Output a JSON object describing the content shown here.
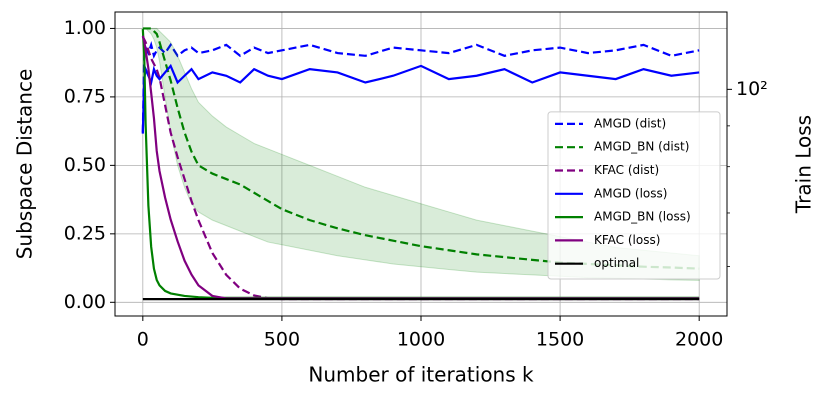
{
  "chart_data": {
    "type": "line",
    "xlabel": "Number of iterations k",
    "ylabel": "Subspace Distance",
    "y2label": "Train Loss",
    "x": [
      0,
      5,
      10,
      20,
      30,
      40,
      50,
      60,
      80,
      100,
      125,
      150,
      175,
      200,
      250,
      300,
      350,
      400,
      450,
      500,
      600,
      700,
      800,
      900,
      1000,
      1100,
      1200,
      1300,
      1400,
      1500,
      1600,
      1700,
      1800,
      1900,
      2000
    ],
    "xlim": [
      -100,
      2100
    ],
    "xticks": [
      0,
      500,
      1000,
      1500,
      2000
    ],
    "ylim": [
      -0.05,
      1.06
    ],
    "yticks": [
      {
        "value": 0,
        "label": "0.00"
      },
      {
        "value": 0.25,
        "label": "0.25"
      },
      {
        "value": 0.5,
        "label": "0.50"
      },
      {
        "value": 0.75,
        "label": "0.75"
      },
      {
        "value": 1,
        "label": "1.00"
      }
    ],
    "y2lim": [
      52,
      125
    ],
    "y2log": true,
    "y2ticks": [
      {
        "value": 100,
        "label": "10²"
      }
    ],
    "y2minor_ticks": [
      60,
      70,
      80,
      90
    ],
    "grid": true,
    "legend": "lower right",
    "series": [
      {
        "name": "AMGD (dist)",
        "color": "#0000ff",
        "linestyle": "dashed",
        "values": [
          0.62,
          0.9,
          0.93,
          0.91,
          0.94,
          0.9,
          0.92,
          0.93,
          0.91,
          0.94,
          0.9,
          0.92,
          0.93,
          0.91,
          0.92,
          0.94,
          0.9,
          0.93,
          0.91,
          0.92,
          0.94,
          0.91,
          0.9,
          0.93,
          0.92,
          0.91,
          0.94,
          0.9,
          0.92,
          0.93,
          0.91,
          0.92,
          0.94,
          0.9,
          0.92
        ]
      },
      {
        "name": "AMGD_BN (dist)",
        "color": "#008000",
        "linestyle": "dashed",
        "values": [
          1.0,
          1.0,
          1.0,
          1.0,
          1.0,
          0.99,
          0.98,
          0.95,
          0.88,
          0.81,
          0.71,
          0.62,
          0.55,
          0.5,
          0.47,
          0.45,
          0.43,
          0.4,
          0.37,
          0.34,
          0.3,
          0.27,
          0.245,
          0.225,
          0.205,
          0.19,
          0.175,
          0.165,
          0.155,
          0.145,
          0.14,
          0.135,
          0.13,
          0.127,
          0.123
        ],
        "lower": [
          1.0,
          1.0,
          1.0,
          0.99,
          0.98,
          0.96,
          0.93,
          0.88,
          0.75,
          0.62,
          0.5,
          0.42,
          0.36,
          0.33,
          0.3,
          0.28,
          0.26,
          0.24,
          0.22,
          0.21,
          0.19,
          0.17,
          0.155,
          0.14,
          0.13,
          0.12,
          0.11,
          0.105,
          0.1,
          0.095,
          0.09,
          0.088,
          0.085,
          0.082,
          0.08
        ],
        "upper": [
          1.0,
          1.0,
          1.0,
          1.0,
          1.0,
          1.0,
          1.0,
          0.99,
          0.97,
          0.95,
          0.9,
          0.84,
          0.78,
          0.73,
          0.68,
          0.64,
          0.61,
          0.58,
          0.56,
          0.54,
          0.5,
          0.46,
          0.42,
          0.39,
          0.36,
          0.33,
          0.3,
          0.28,
          0.26,
          0.24,
          0.22,
          0.2,
          0.19,
          0.18,
          0.17
        ]
      },
      {
        "name": "KFAC (dist)",
        "color": "#800080",
        "linestyle": "dashed",
        "values": [
          0.97,
          0.96,
          0.95,
          0.92,
          0.89,
          0.87,
          0.85,
          0.82,
          0.72,
          0.62,
          0.53,
          0.45,
          0.37,
          0.3,
          0.18,
          0.1,
          0.05,
          0.025,
          0.015,
          0.012,
          0.012,
          0.012,
          0.012,
          0.012,
          0.012,
          0.012,
          0.012,
          0.012,
          0.012,
          0.012,
          0.012,
          0.012,
          0.012,
          0.012,
          0.012
        ]
      },
      {
        "name": "AMGD (loss)",
        "color": "#0000ff",
        "linestyle": "solid",
        "axis": "y2",
        "values": [
          88,
          103,
          106,
          104,
          102,
          106,
          104,
          103,
          105,
          107,
          102,
          104,
          106,
          103,
          105,
          104,
          102,
          106,
          104,
          103,
          106,
          105,
          102,
          104,
          107,
          103,
          104,
          106,
          102,
          105,
          104,
          103,
          106,
          104,
          105
        ]
      },
      {
        "name": "AMGD_BN (loss)",
        "color": "#008000",
        "linestyle": "solid",
        "axis": "y2",
        "values": [
          119,
          110.4,
          90.6,
          71.5,
          63.5,
          59.6,
          57.7,
          56.8,
          55.9,
          55.5,
          55.3,
          55.1,
          55.0,
          54.9,
          54.8,
          54.8,
          54.8,
          54.8,
          54.8,
          54.8,
          54.8,
          54.8,
          54.8,
          54.8,
          54.8,
          54.8,
          54.8,
          54.8,
          54.8,
          54.8,
          54.8,
          54.8,
          54.8,
          54.8,
          54.8
        ]
      },
      {
        "name": "KFAC (loss)",
        "color": "#800080",
        "linestyle": "solid",
        "axis": "y2",
        "values": [
          116.7,
          115,
          112,
          106.2,
          99,
          92,
          83.7,
          79,
          73.2,
          68.7,
          64.5,
          61.0,
          58.6,
          56.8,
          55.1,
          54.7,
          54.7,
          54.7,
          54.7,
          54.7,
          54.7,
          54.7,
          54.7,
          54.7,
          54.7,
          54.7,
          54.7,
          54.7,
          54.7,
          54.7,
          54.7,
          54.7,
          54.7,
          54.7,
          54.7
        ]
      },
      {
        "name": "optimal",
        "color": "#000000",
        "linestyle": "solid",
        "axis": "y2",
        "values": [
          54.6,
          54.6,
          54.6,
          54.6,
          54.6,
          54.6,
          54.6,
          54.6,
          54.6,
          54.6,
          54.6,
          54.6,
          54.6,
          54.6,
          54.6,
          54.6,
          54.6,
          54.6,
          54.6,
          54.6,
          54.6,
          54.6,
          54.6,
          54.6,
          54.6,
          54.6,
          54.6,
          54.6,
          54.6,
          54.6,
          54.6,
          54.6,
          54.6,
          54.6,
          54.6
        ]
      }
    ]
  }
}
